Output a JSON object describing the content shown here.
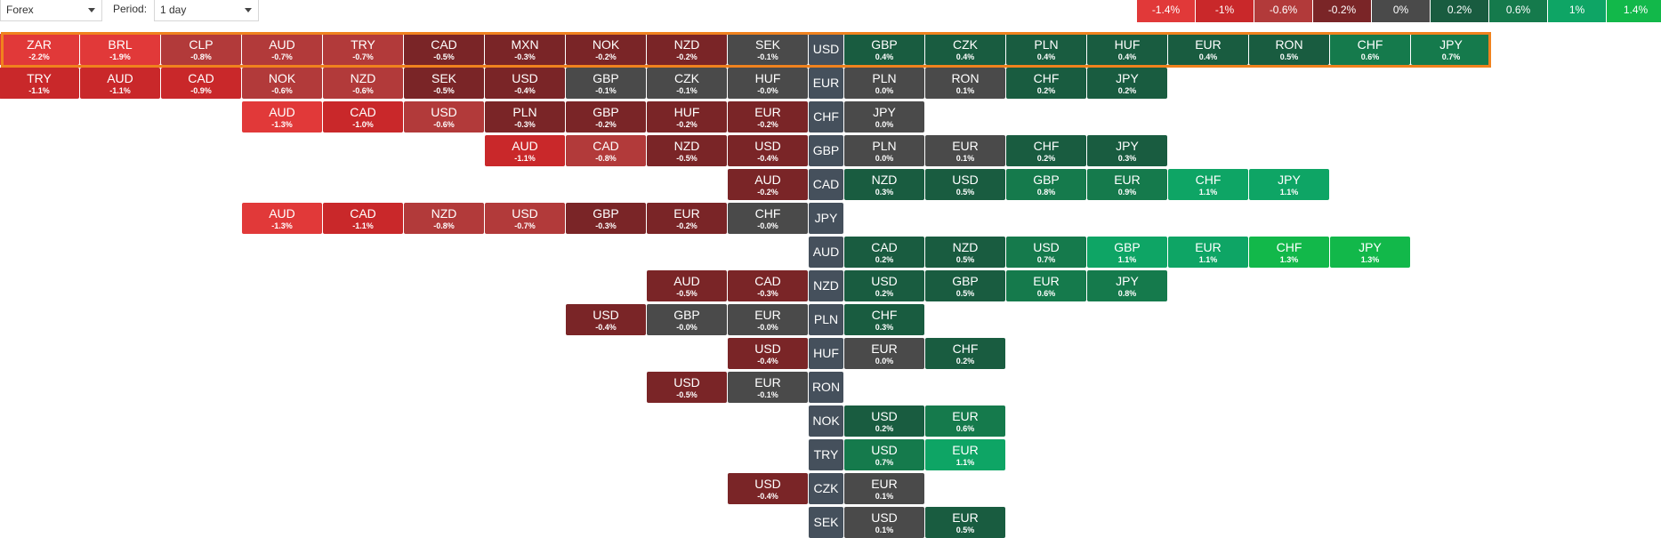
{
  "controls": {
    "market_select": "Forex",
    "period_label": "Period:",
    "period_select": "1 day"
  },
  "legend": [
    {
      "label": "-1.4%",
      "color": "#e13939"
    },
    {
      "label": "-1%",
      "color": "#c9282a"
    },
    {
      "label": "-0.6%",
      "color": "#b23a3a"
    },
    {
      "label": "-0.2%",
      "color": "#7a2527"
    },
    {
      "label": "0%",
      "color": "#4a4a4a"
    },
    {
      "label": "0.2%",
      "color": "#195c40"
    },
    {
      "label": "0.6%",
      "color": "#157a4c"
    },
    {
      "label": "1%",
      "color": "#0ea565"
    },
    {
      "label": "1.4%",
      "color": "#12b84a"
    }
  ],
  "colors": {
    "base": "#45505c",
    "highlight": "#f0821e"
  },
  "rows": [
    {
      "base": "USD",
      "highlighted": true,
      "left": [
        [
          "SEK",
          "-0.1%"
        ],
        [
          "NZD",
          "-0.2%"
        ],
        [
          "NOK",
          "-0.2%"
        ],
        [
          "MXN",
          "-0.3%"
        ],
        [
          "CAD",
          "-0.5%"
        ],
        [
          "TRY",
          "-0.7%"
        ],
        [
          "AUD",
          "-0.7%"
        ],
        [
          "CLP",
          "-0.8%"
        ],
        [
          "BRL",
          "-1.9%"
        ],
        [
          "ZAR",
          "-2.2%"
        ]
      ],
      "right": [
        [
          "GBP",
          "0.4%"
        ],
        [
          "CZK",
          "0.4%"
        ],
        [
          "PLN",
          "0.4%"
        ],
        [
          "HUF",
          "0.4%"
        ],
        [
          "EUR",
          "0.4%"
        ],
        [
          "RON",
          "0.5%"
        ],
        [
          "CHF",
          "0.6%"
        ],
        [
          "JPY",
          "0.7%"
        ]
      ]
    },
    {
      "base": "EUR",
      "left": [
        [
          "HUF",
          "-0.0%"
        ],
        [
          "CZK",
          "-0.1%"
        ],
        [
          "GBP",
          "-0.1%"
        ],
        [
          "USD",
          "-0.4%"
        ],
        [
          "SEK",
          "-0.5%"
        ],
        [
          "NZD",
          "-0.6%"
        ],
        [
          "NOK",
          "-0.6%"
        ],
        [
          "CAD",
          "-0.9%"
        ],
        [
          "AUD",
          "-1.1%"
        ],
        [
          "TRY",
          "-1.1%"
        ]
      ],
      "right": [
        [
          "PLN",
          "0.0%"
        ],
        [
          "RON",
          "0.1%"
        ],
        [
          "CHF",
          "0.2%"
        ],
        [
          "JPY",
          "0.2%"
        ]
      ]
    },
    {
      "base": "CHF",
      "left": [
        [
          "EUR",
          "-0.2%"
        ],
        [
          "HUF",
          "-0.2%"
        ],
        [
          "GBP",
          "-0.2%"
        ],
        [
          "PLN",
          "-0.3%"
        ],
        [
          "USD",
          "-0.6%"
        ],
        [
          "CAD",
          "-1.0%"
        ],
        [
          "AUD",
          "-1.3%"
        ]
      ],
      "right": [
        [
          "JPY",
          "0.0%"
        ]
      ]
    },
    {
      "base": "GBP",
      "left": [
        [
          "USD",
          "-0.4%"
        ],
        [
          "NZD",
          "-0.5%"
        ],
        [
          "CAD",
          "-0.8%"
        ],
        [
          "AUD",
          "-1.1%"
        ]
      ],
      "right": [
        [
          "PLN",
          "0.0%"
        ],
        [
          "EUR",
          "0.1%"
        ],
        [
          "CHF",
          "0.2%"
        ],
        [
          "JPY",
          "0.3%"
        ]
      ]
    },
    {
      "base": "CAD",
      "left": [
        [
          "AUD",
          "-0.2%"
        ]
      ],
      "right": [
        [
          "NZD",
          "0.3%"
        ],
        [
          "USD",
          "0.5%"
        ],
        [
          "GBP",
          "0.8%"
        ],
        [
          "EUR",
          "0.9%"
        ],
        [
          "CHF",
          "1.1%"
        ],
        [
          "JPY",
          "1.1%"
        ]
      ]
    },
    {
      "base": "JPY",
      "left": [
        [
          "CHF",
          "-0.0%"
        ],
        [
          "EUR",
          "-0.2%"
        ],
        [
          "GBP",
          "-0.3%"
        ],
        [
          "USD",
          "-0.7%"
        ],
        [
          "NZD",
          "-0.8%"
        ],
        [
          "CAD",
          "-1.1%"
        ],
        [
          "AUD",
          "-1.3%"
        ]
      ],
      "right": []
    },
    {
      "base": "AUD",
      "left": [],
      "right": [
        [
          "CAD",
          "0.2%"
        ],
        [
          "NZD",
          "0.5%"
        ],
        [
          "USD",
          "0.7%"
        ],
        [
          "GBP",
          "1.1%"
        ],
        [
          "EUR",
          "1.1%"
        ],
        [
          "CHF",
          "1.3%"
        ],
        [
          "JPY",
          "1.3%"
        ]
      ]
    },
    {
      "base": "NZD",
      "left": [
        [
          "CAD",
          "-0.3%"
        ],
        [
          "AUD",
          "-0.5%"
        ]
      ],
      "right": [
        [
          "USD",
          "0.2%"
        ],
        [
          "GBP",
          "0.5%"
        ],
        [
          "EUR",
          "0.6%"
        ],
        [
          "JPY",
          "0.8%"
        ]
      ]
    },
    {
      "base": "PLN",
      "left": [
        [
          "EUR",
          "-0.0%"
        ],
        [
          "GBP",
          "-0.0%"
        ],
        [
          "USD",
          "-0.4%"
        ]
      ],
      "right": [
        [
          "CHF",
          "0.3%"
        ]
      ]
    },
    {
      "base": "HUF",
      "left": [
        [
          "USD",
          "-0.4%"
        ]
      ],
      "right": [
        [
          "EUR",
          "0.0%"
        ],
        [
          "CHF",
          "0.2%"
        ]
      ]
    },
    {
      "base": "RON",
      "left": [
        [
          "EUR",
          "-0.1%"
        ],
        [
          "USD",
          "-0.5%"
        ]
      ],
      "right": []
    },
    {
      "base": "NOK",
      "left": [],
      "right": [
        [
          "USD",
          "0.2%"
        ],
        [
          "EUR",
          "0.6%"
        ]
      ]
    },
    {
      "base": "TRY",
      "left": [],
      "right": [
        [
          "USD",
          "0.7%"
        ],
        [
          "EUR",
          "1.1%"
        ]
      ]
    },
    {
      "base": "CZK",
      "left": [
        [
          "USD",
          "-0.4%"
        ]
      ],
      "right": [
        [
          "EUR",
          "0.1%"
        ]
      ]
    },
    {
      "base": "SEK",
      "left": [],
      "right": [
        [
          "USD",
          "0.1%"
        ],
        [
          "EUR",
          "0.5%"
        ]
      ]
    }
  ]
}
